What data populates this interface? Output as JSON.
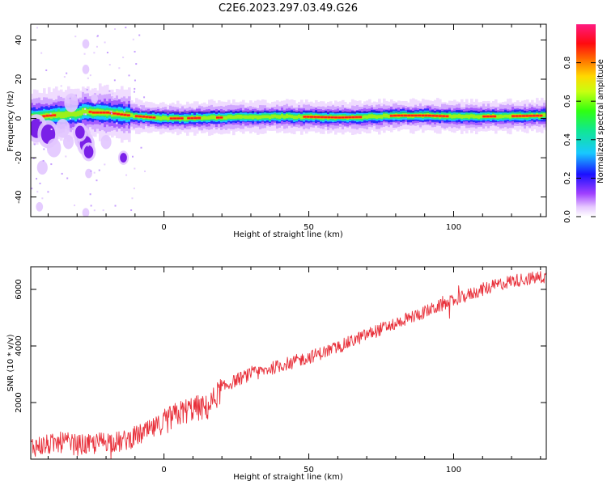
{
  "figure_title": "C2E6.2023.297.03.49.G26",
  "chart_data": [
    {
      "type": "heatmap",
      "xlabel": "Height of straight line (km)",
      "ylabel": "Frequency (Hz)",
      "xlim": [
        -46,
        132
      ],
      "ylim": [
        -50,
        48
      ],
      "x_ticks": [
        0,
        50,
        100
      ],
      "y_ticks": [
        -40,
        -20,
        0,
        20,
        40
      ],
      "grid": false,
      "colorbar": {
        "label": "Normalized spectral amplitude",
        "range": [
          0,
          1
        ],
        "ticks": [
          0.0,
          0.2,
          0.4,
          0.6,
          0.8
        ],
        "tick_labels": [
          "0.0",
          "0.2",
          "0.4",
          "0.6",
          "0.8"
        ],
        "colormap": "gist_ncar_r-like (white, purple, blue, cyan, green, yellow, orange, red, magenta)"
      },
      "ridge": {
        "x": [
          -46,
          -40,
          -35,
          -30,
          -28,
          -25,
          -20,
          -15,
          -10,
          0,
          10,
          20,
          30,
          40,
          50,
          60,
          70,
          80,
          90,
          100,
          110,
          120,
          132
        ],
        "frequency_hz": [
          0.5,
          1.5,
          2.0,
          2.5,
          4.0,
          3.0,
          3.0,
          2.0,
          1.2,
          0.0,
          0.2,
          0.5,
          0.8,
          1.0,
          0.8,
          0.5,
          0.8,
          1.5,
          1.5,
          1.0,
          1.0,
          1.2,
          1.5
        ]
      }
    },
    {
      "type": "line",
      "xlabel": "Height of straight line (km)",
      "ylabel": "SNR (10 * v/v)",
      "xlim": [
        -46,
        132
      ],
      "ylim": [
        0,
        6800
      ],
      "x_ticks": [
        0,
        50,
        100
      ],
      "y_ticks": [
        2000,
        4000,
        6000
      ],
      "grid": false,
      "series": [
        {
          "color": "#e8303a",
          "x": [
            -46,
            -40,
            -35,
            -30,
            -25,
            -20,
            -15,
            -10,
            -5,
            0,
            5,
            10,
            15,
            20,
            25,
            30,
            40,
            50,
            60,
            70,
            80,
            90,
            100,
            110,
            120,
            132
          ],
          "values": [
            450,
            500,
            600,
            500,
            500,
            650,
            600,
            800,
            1000,
            1300,
            1600,
            1800,
            1800,
            2500,
            2800,
            3000,
            3300,
            3600,
            3950,
            4400,
            4800,
            5200,
            5600,
            6000,
            6300,
            6450
          ]
        }
      ]
    }
  ]
}
